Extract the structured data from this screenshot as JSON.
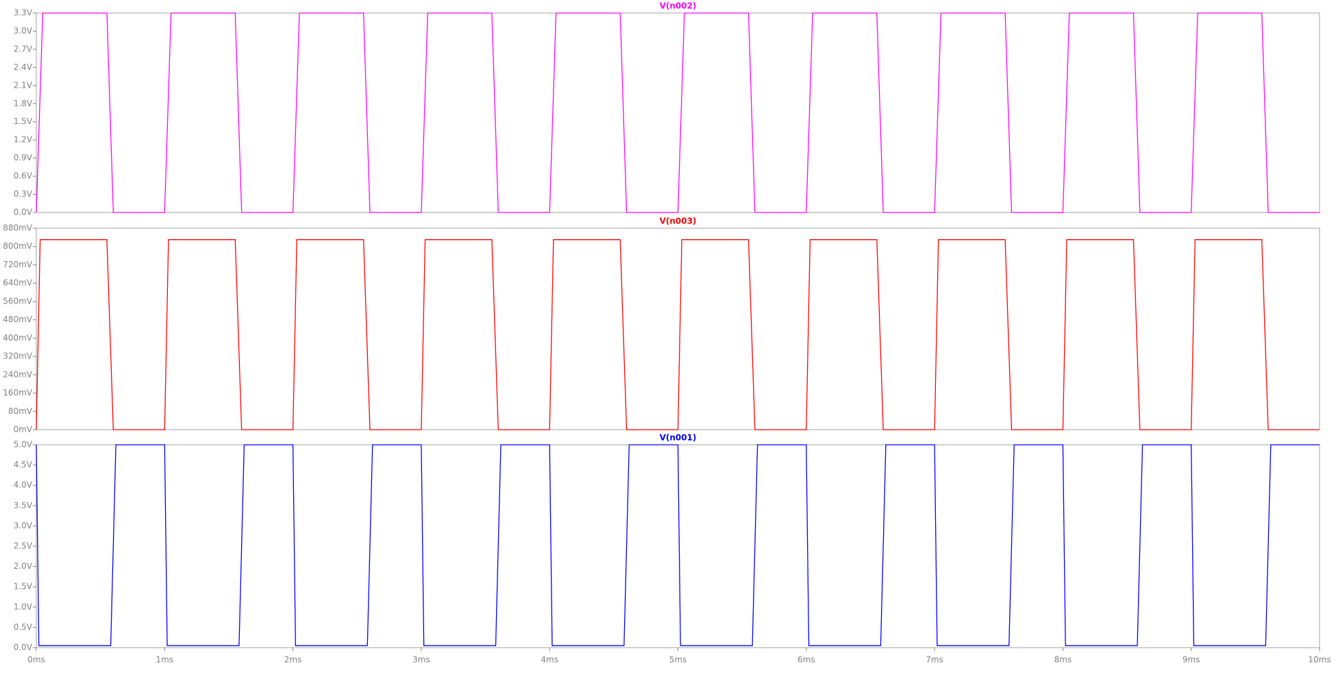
{
  "chart_data": [
    {
      "type": "line",
      "x": [
        0,
        0.05,
        0.55,
        0.6,
        1,
        1.05,
        1.55,
        1.6,
        2,
        2.05,
        2.55,
        2.6,
        3,
        3.05,
        3.55,
        3.6,
        4,
        4.05,
        4.55,
        4.6,
        5,
        5.05,
        5.55,
        5.6,
        6,
        6.05,
        6.55,
        6.6,
        7,
        7.05,
        7.55,
        7.6,
        8,
        8.05,
        8.55,
        8.6,
        9,
        9.05,
        9.55,
        9.6,
        10
      ],
      "series": [
        {
          "name": "V(n002)",
          "color": "#ff00ff",
          "values": [
            0,
            3.3,
            3.3,
            0,
            0,
            3.3,
            3.3,
            0,
            0,
            3.3,
            3.3,
            0,
            0,
            3.3,
            3.3,
            0,
            0,
            3.3,
            3.3,
            0,
            0,
            3.3,
            3.3,
            0,
            0,
            3.3,
            3.3,
            0,
            0,
            3.3,
            3.3,
            0,
            0,
            3.3,
            3.3,
            0,
            0,
            3.3,
            3.3,
            0,
            0
          ]
        }
      ],
      "xlim": [
        0,
        10
      ],
      "ylim": [
        0,
        3.3
      ],
      "yticks": [
        {
          "value": 0,
          "label": "0.0V"
        },
        {
          "value": 0.3,
          "label": "0.3V"
        },
        {
          "value": 0.6,
          "label": "0.6V"
        },
        {
          "value": 0.9,
          "label": "0.9V"
        },
        {
          "value": 1.2,
          "label": "1.2V"
        },
        {
          "value": 1.5,
          "label": "1.5V"
        },
        {
          "value": 1.8,
          "label": "1.8V"
        },
        {
          "value": 2.1,
          "label": "2.1V"
        },
        {
          "value": 2.4,
          "label": "2.4V"
        },
        {
          "value": 2.7,
          "label": "2.7V"
        },
        {
          "value": 3.0,
          "label": "3.0V"
        },
        {
          "value": 3.3,
          "label": "3.3V"
        }
      ]
    },
    {
      "type": "line",
      "x": [
        0,
        0.03,
        0.55,
        0.6,
        1,
        1.03,
        1.55,
        1.6,
        2,
        2.03,
        2.55,
        2.6,
        3,
        3.03,
        3.55,
        3.6,
        4,
        4.03,
        4.55,
        4.6,
        5,
        5.03,
        5.55,
        5.6,
        6,
        6.03,
        6.55,
        6.6,
        7,
        7.03,
        7.55,
        7.6,
        8,
        8.03,
        8.55,
        8.6,
        9,
        9.03,
        9.55,
        9.6,
        10
      ],
      "series": [
        {
          "name": "V(n003)",
          "color": "#ff0000",
          "values": [
            0,
            830,
            830,
            0,
            0,
            830,
            830,
            0,
            0,
            830,
            830,
            0,
            0,
            830,
            830,
            0,
            0,
            830,
            830,
            0,
            0,
            830,
            830,
            0,
            0,
            830,
            830,
            0,
            0,
            830,
            830,
            0,
            0,
            830,
            830,
            0,
            0,
            830,
            830,
            0,
            0
          ]
        }
      ],
      "xlim": [
        0,
        10
      ],
      "ylim": [
        0,
        880
      ],
      "yticks": [
        {
          "value": 0,
          "label": "0mV"
        },
        {
          "value": 80,
          "label": "80mV"
        },
        {
          "value": 160,
          "label": "160mV"
        },
        {
          "value": 240,
          "label": "240mV"
        },
        {
          "value": 320,
          "label": "320mV"
        },
        {
          "value": 400,
          "label": "400mV"
        },
        {
          "value": 480,
          "label": "480mV"
        },
        {
          "value": 560,
          "label": "560mV"
        },
        {
          "value": 640,
          "label": "640mV"
        },
        {
          "value": 720,
          "label": "720mV"
        },
        {
          "value": 800,
          "label": "800mV"
        },
        {
          "value": 880,
          "label": "880mV"
        }
      ]
    },
    {
      "type": "line",
      "x": [
        0,
        0.02,
        0.58,
        0.62,
        1,
        1.02,
        1.58,
        1.62,
        2,
        2.02,
        2.58,
        2.62,
        3,
        3.02,
        3.58,
        3.62,
        4,
        4.02,
        4.58,
        4.62,
        5,
        5.02,
        5.58,
        5.62,
        6,
        6.02,
        6.58,
        6.62,
        7,
        7.02,
        7.58,
        7.62,
        8,
        8.02,
        8.58,
        8.62,
        9,
        9.02,
        9.58,
        9.62,
        10
      ],
      "series": [
        {
          "name": "V(n001)",
          "color": "#0000ff",
          "values": [
            5,
            0.05,
            0.05,
            5,
            5,
            0.05,
            0.05,
            5,
            5,
            0.05,
            0.05,
            5,
            5,
            0.05,
            0.05,
            5,
            5,
            0.05,
            0.05,
            5,
            5,
            0.05,
            0.05,
            5,
            5,
            0.05,
            0.05,
            5,
            5,
            0.05,
            0.05,
            5,
            5,
            0.05,
            0.05,
            5,
            5,
            0.05,
            0.05,
            5,
            5
          ]
        }
      ],
      "xlim": [
        0,
        10
      ],
      "ylim": [
        0,
        5
      ],
      "yticks": [
        {
          "value": 0,
          "label": "0.0V"
        },
        {
          "value": 0.5,
          "label": "0.5V"
        },
        {
          "value": 1,
          "label": "1.0V"
        },
        {
          "value": 1.5,
          "label": "1.5V"
        },
        {
          "value": 2,
          "label": "2.0V"
        },
        {
          "value": 2.5,
          "label": "2.5V"
        },
        {
          "value": 3,
          "label": "3.0V"
        },
        {
          "value": 3.5,
          "label": "3.5V"
        },
        {
          "value": 4,
          "label": "4.0V"
        },
        {
          "value": 4.5,
          "label": "4.5V"
        },
        {
          "value": 5,
          "label": "5.0V"
        }
      ],
      "xticks": [
        {
          "value": 0,
          "label": "0ms"
        },
        {
          "value": 1,
          "label": "1ms"
        },
        {
          "value": 2,
          "label": "2ms"
        },
        {
          "value": 3,
          "label": "3ms"
        },
        {
          "value": 4,
          "label": "4ms"
        },
        {
          "value": 5,
          "label": "5ms"
        },
        {
          "value": 6,
          "label": "6ms"
        },
        {
          "value": 7,
          "label": "7ms"
        },
        {
          "value": 8,
          "label": "8ms"
        },
        {
          "value": 9,
          "label": "9ms"
        },
        {
          "value": 10,
          "label": "10ms"
        }
      ]
    }
  ]
}
